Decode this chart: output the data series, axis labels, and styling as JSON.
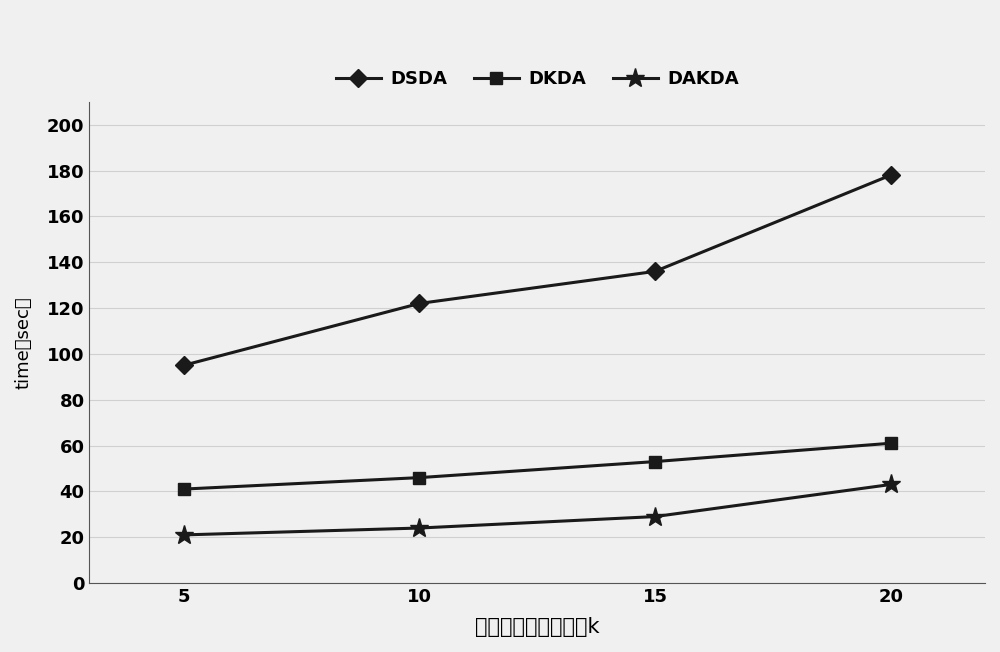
{
  "x": [
    5,
    10,
    15,
    20
  ],
  "series": [
    {
      "label": "DSDA",
      "values": [
        95,
        122,
        136,
        178
      ],
      "color": "#1a1a1a",
      "marker": "D",
      "markersize": 9,
      "linewidth": 2.2
    },
    {
      "label": "DKDA",
      "values": [
        41,
        46,
        53,
        61
      ],
      "color": "#1a1a1a",
      "marker": "s",
      "markersize": 9,
      "linewidth": 2.2
    },
    {
      "label": "DAKDA",
      "values": [
        21,
        24,
        29,
        43
      ],
      "color": "#1a1a1a",
      "marker": "*",
      "markersize": 14,
      "linewidth": 2.2
    }
  ],
  "xlabel": "查询返回结果集大小k",
  "ylabel": "time（sec）",
  "xlim": [
    3,
    22
  ],
  "ylim": [
    0,
    210
  ],
  "yticks": [
    0,
    20,
    40,
    60,
    80,
    100,
    120,
    140,
    160,
    180,
    200
  ],
  "xticks": [
    5,
    10,
    15,
    20
  ],
  "background_color": "#f0f0f0",
  "grid_color": "#d0d0d0",
  "legend_position": "upper center",
  "legend_ncol": 3,
  "xlabel_fontsize": 15,
  "ylabel_fontsize": 13,
  "tick_fontsize": 13,
  "legend_fontsize": 13
}
